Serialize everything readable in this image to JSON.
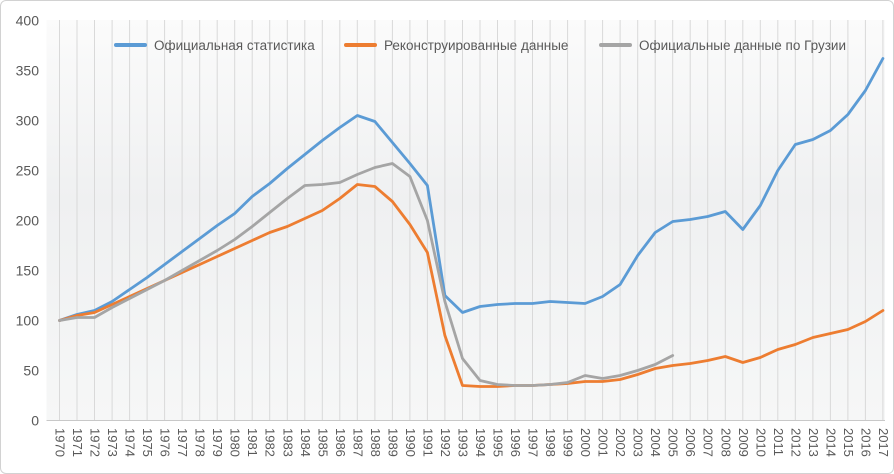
{
  "chart_data": {
    "type": "line",
    "title": "",
    "xlabel": "",
    "ylabel": "",
    "ylim": [
      0,
      400
    ],
    "y_ticks": [
      0,
      50,
      100,
      150,
      200,
      250,
      300,
      350,
      400
    ],
    "grid": "vertical",
    "legend_position": "top",
    "background": "#ffffff",
    "plot_bg_top": "#fbfbfb",
    "plot_bg_mid": "#eff0f1",
    "plot_bg_bottom": "#f6f7f7",
    "gridline_color": "#d9d9d9",
    "axis_line_color": "#c8c8c8",
    "tick_label_color": "#595959",
    "years": [
      1970,
      1971,
      1972,
      1973,
      1974,
      1975,
      1976,
      1977,
      1978,
      1979,
      1980,
      1981,
      1982,
      1983,
      1984,
      1985,
      1986,
      1987,
      1988,
      1989,
      1990,
      1991,
      1992,
      1993,
      1994,
      1995,
      1996,
      1997,
      1998,
      1999,
      2000,
      2001,
      2002,
      2003,
      2004,
      2005,
      2006,
      2007,
      2008,
      2009,
      2010,
      2011,
      2012,
      2013,
      2014,
      2015,
      2016,
      2017
    ],
    "series": [
      {
        "name": "Официальная статистика",
        "color": "#5b9bd5",
        "start_year": 1970,
        "values": [
          100,
          106,
          110,
          119,
          131,
          143,
          156,
          169,
          182,
          195,
          207,
          224,
          237,
          252,
          266,
          280,
          293,
          305,
          299,
          278,
          257,
          235,
          125,
          108,
          114,
          116,
          117,
          117,
          119,
          118,
          117,
          124,
          136,
          165,
          188,
          199,
          201,
          204,
          209,
          191,
          215,
          250,
          276,
          281,
          290,
          306,
          330,
          362
        ]
      },
      {
        "name": "Реконструированные данные",
        "color": "#ed7d31",
        "start_year": 1970,
        "values": [
          100,
          105,
          108,
          116,
          124,
          132,
          140,
          148,
          156,
          164,
          172,
          180,
          188,
          194,
          202,
          210,
          222,
          236,
          234,
          219,
          196,
          168,
          85,
          35,
          34,
          34,
          35,
          35,
          36,
          37,
          39,
          39,
          41,
          46,
          52,
          55,
          57,
          60,
          64,
          58,
          63,
          71,
          76,
          83,
          87,
          91,
          99,
          110
        ]
      },
      {
        "name": "Официальные данные по Грузии",
        "color": "#a5a5a5",
        "start_year": 1970,
        "values": [
          100,
          103,
          103,
          113,
          122,
          131,
          140,
          150,
          160,
          170,
          181,
          194,
          208,
          222,
          235,
          236,
          238,
          246,
          253,
          257,
          244,
          200,
          119,
          62,
          40,
          36,
          35,
          35,
          36,
          38,
          45,
          42,
          45,
          50,
          56,
          65
        ]
      }
    ]
  },
  "legend": {
    "item1": "Официальная статистика",
    "item2": "Реконструированные данные",
    "item3": "Официальные данные по Грузии"
  }
}
